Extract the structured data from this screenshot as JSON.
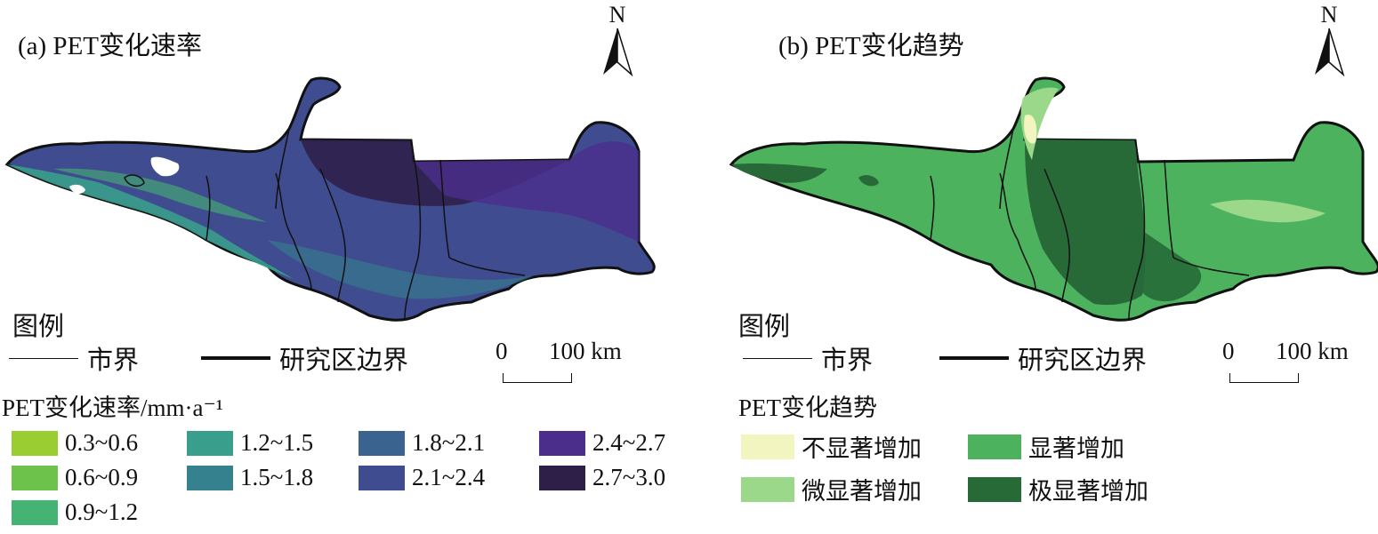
{
  "panel_a": {
    "title": "(a) PET变化速率",
    "north": "N",
    "legend_heading": "图例",
    "city_boundary_label": "市界",
    "study_boundary_label": "研究区边界",
    "scale": {
      "zero": "0",
      "end": "100 km"
    },
    "classes_title": "PET变化速率/mm·a⁻¹",
    "classes": [
      {
        "label": "0.3~0.6",
        "color": "#9ACD32"
      },
      {
        "label": "0.6~0.9",
        "color": "#6CC24A"
      },
      {
        "label": "0.9~1.2",
        "color": "#45B472"
      },
      {
        "label": "1.2~1.5",
        "color": "#3A9E8C"
      },
      {
        "label": "1.5~1.8",
        "color": "#36818E"
      },
      {
        "label": "1.8~2.1",
        "color": "#3A6390"
      },
      {
        "label": "2.1~2.4",
        "color": "#3F4C8F"
      },
      {
        "label": "2.4~2.7",
        "color": "#4B2E8C"
      },
      {
        "label": "2.7~3.0",
        "color": "#2E1F48"
      }
    ]
  },
  "panel_b": {
    "title": "(b) PET变化趋势",
    "north": "N",
    "legend_heading": "图例",
    "city_boundary_label": "市界",
    "study_boundary_label": "研究区边界",
    "scale": {
      "zero": "0",
      "end": "100 km"
    },
    "classes_title": "PET变化趋势",
    "classes": [
      {
        "label": "不显著增加",
        "color": "#F2F5BF"
      },
      {
        "label": "微显著增加",
        "color": "#9BD88A"
      },
      {
        "label": "显著增加",
        "color": "#4CB25E"
      },
      {
        "label": "极显著增加",
        "color": "#276A38"
      }
    ]
  }
}
